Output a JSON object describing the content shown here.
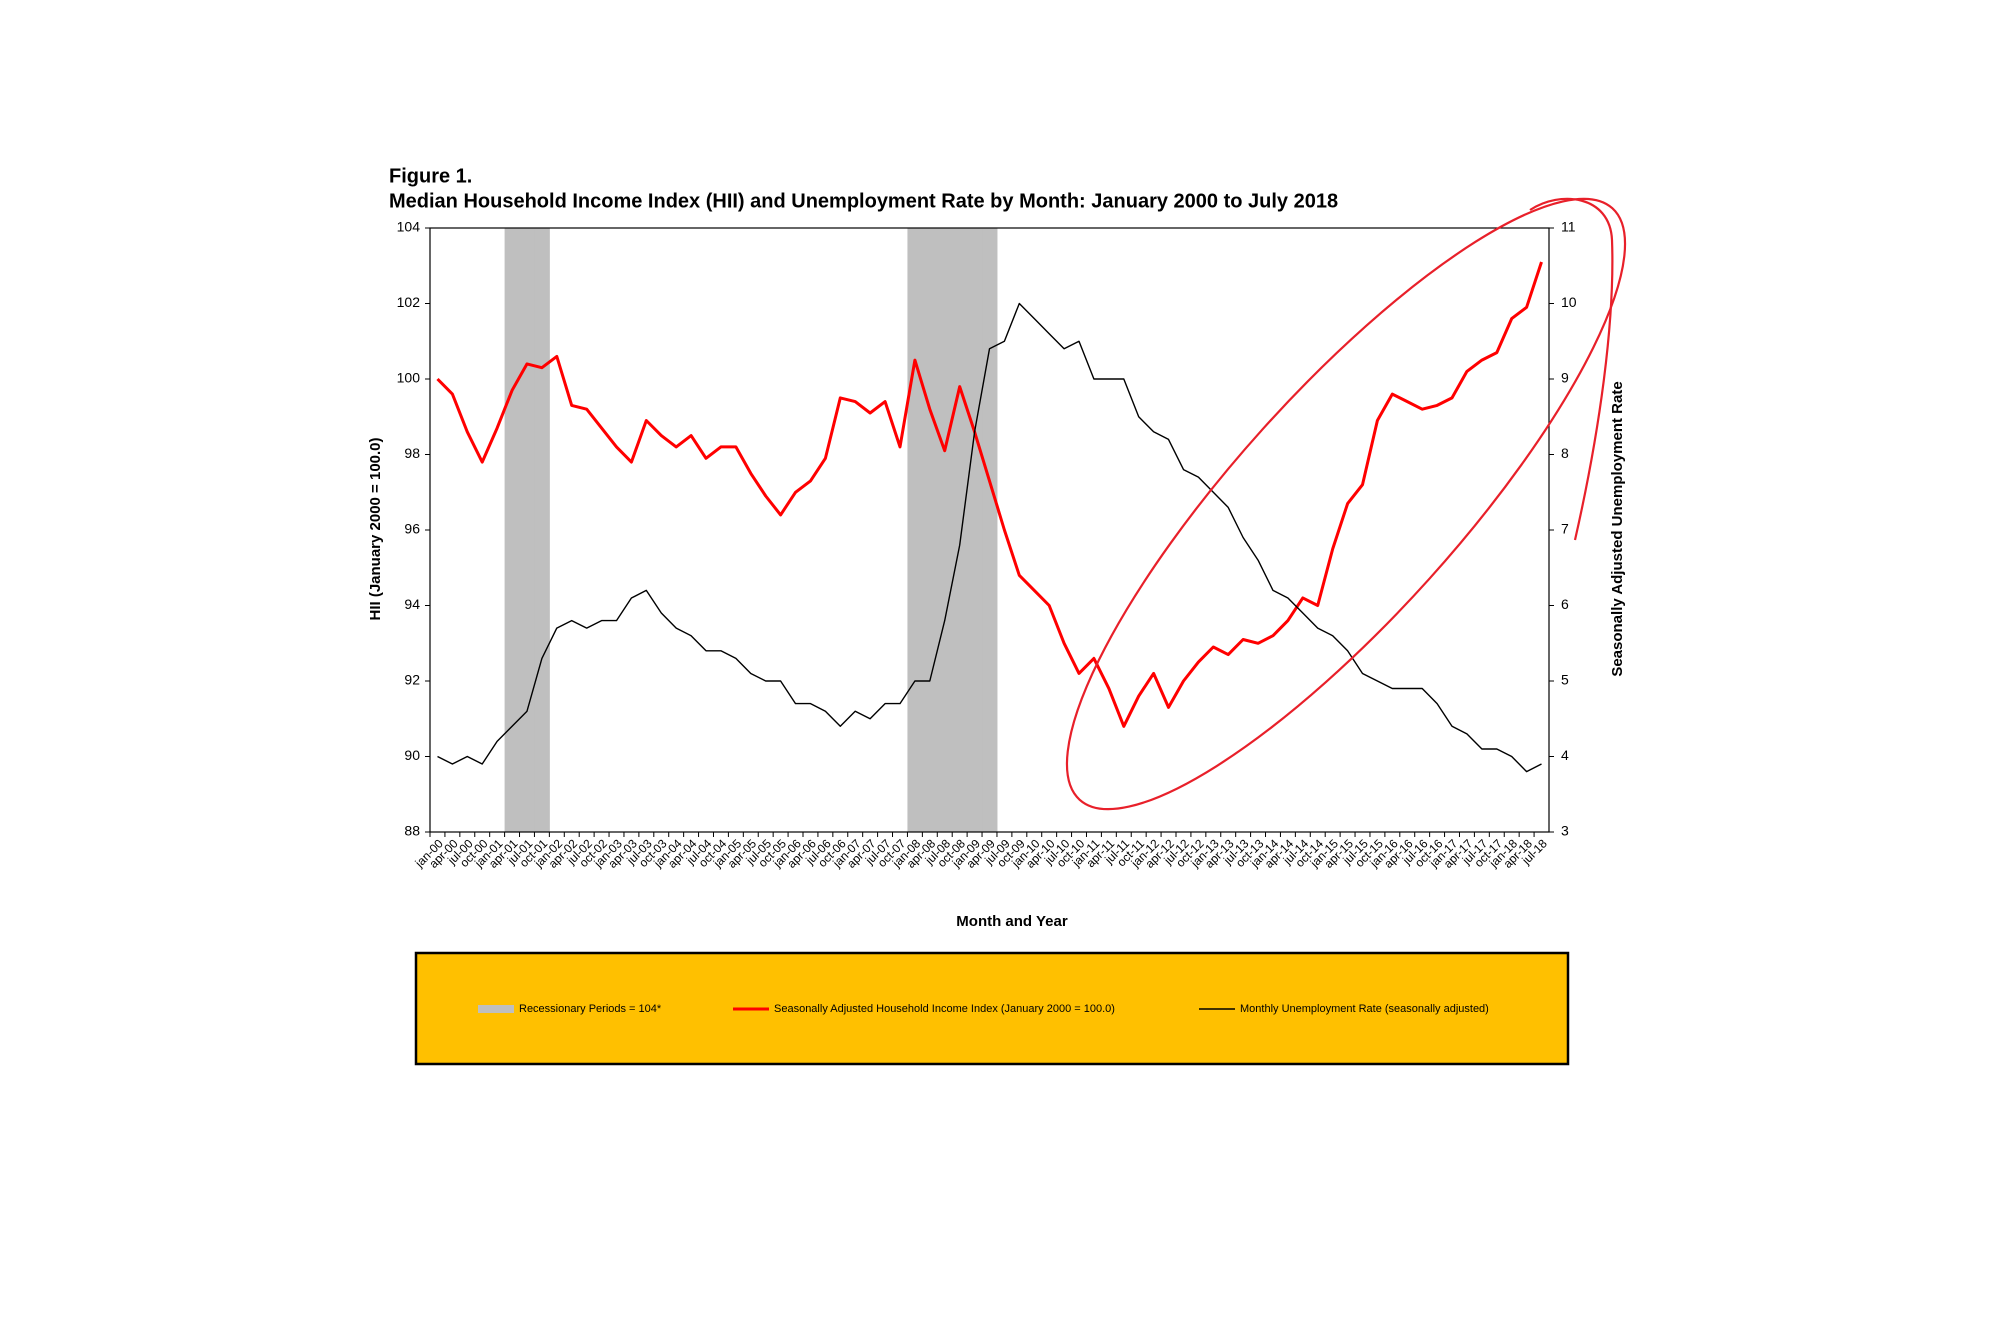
{
  "chart_data": {
    "type": "line",
    "title": "Figure 1.",
    "subtitle": "Median Household Income Index (HII) and Unemployment Rate by Month: January 2000 to July 2018",
    "x_label": "Month and Year",
    "y_label": "HII (January 2000 = 100.0)",
    "y2_label": "Seasonally Adjusted Unemployment Rate",
    "categories": [
      "jan-00",
      "apr-00",
      "jul-00",
      "oct-00",
      "jan-01",
      "apr-01",
      "jul-01",
      "oct-01",
      "jan-02",
      "apr-02",
      "jul-02",
      "oct-02",
      "jan-03",
      "apr-03",
      "jul-03",
      "oct-03",
      "jan-04",
      "apr-04",
      "jul-04",
      "oct-04",
      "jan-05",
      "apr-05",
      "jul-05",
      "oct-05",
      "jan-06",
      "apr-06",
      "jul-06",
      "oct-06",
      "jan-07",
      "apr-07",
      "jul-07",
      "oct-07",
      "jan-08",
      "apr-08",
      "jul-08",
      "oct-08",
      "jan-09",
      "apr-09",
      "jul-09",
      "oct-09",
      "jan-10",
      "apr-10",
      "jul-10",
      "oct-10",
      "jan-11",
      "apr-11",
      "jul-11",
      "oct-11",
      "jan-12",
      "apr-12",
      "jul-12",
      "oct-12",
      "jan-13",
      "apr-13",
      "jul-13",
      "oct-13",
      "jan-14",
      "apr-14",
      "jul-14",
      "oct-14",
      "jan-15",
      "apr-15",
      "jul-15",
      "oct-15",
      "jan-16",
      "apr-16",
      "jul-16",
      "oct-16",
      "jan-17",
      "apr-17",
      "jul-17",
      "oct-17",
      "jan-18",
      "apr-18",
      "jul-18"
    ],
    "series": [
      {
        "name": "Recessionary Periods = 104*",
        "type": "bar",
        "color": "#bfbfbf",
        "values": [
          null,
          null,
          null,
          null,
          null,
          104,
          104,
          104,
          null,
          null,
          null,
          null,
          null,
          null,
          null,
          null,
          null,
          null,
          null,
          null,
          null,
          null,
          null,
          null,
          null,
          null,
          null,
          null,
          null,
          null,
          null,
          null,
          104,
          104,
          104,
          104,
          104,
          104,
          null,
          null,
          null,
          null,
          null,
          null,
          null,
          null,
          null,
          null,
          null,
          null,
          null,
          null,
          null,
          null,
          null,
          null,
          null,
          null,
          null,
          null,
          null,
          null,
          null,
          null,
          null,
          null,
          null,
          null,
          null,
          null,
          null,
          null,
          null,
          null,
          null
        ]
      },
      {
        "name": "Seasonally Adjusted Household Income Index (January 2000 = 100.0)",
        "type": "line",
        "color": "#ff0000",
        "values": [
          100.0,
          99.6,
          98.6,
          97.8,
          98.7,
          99.7,
          100.4,
          100.3,
          100.6,
          99.3,
          99.2,
          98.7,
          98.2,
          97.8,
          98.9,
          98.5,
          98.2,
          98.5,
          97.9,
          98.2,
          98.2,
          97.5,
          96.9,
          96.4,
          97.0,
          97.3,
          97.9,
          99.5,
          99.4,
          99.1,
          99.4,
          98.2,
          100.5,
          99.2,
          98.1,
          99.8,
          98.6,
          97.3,
          96.0,
          94.8,
          94.4,
          94.0,
          93.0,
          92.2,
          92.6,
          91.8,
          90.8,
          91.6,
          92.2,
          91.3,
          92.0,
          92.5,
          92.9,
          92.7,
          93.1,
          93.0,
          93.2,
          93.6,
          94.2,
          94.0,
          95.5,
          96.7,
          97.2,
          98.9,
          99.6,
          99.4,
          99.2,
          99.3,
          99.5,
          100.2,
          100.5,
          100.7,
          101.6,
          101.9,
          103.1
        ]
      },
      {
        "name": "Monthly Unemployment Rate (seasonally adjusted)",
        "type": "line",
        "axis": "y2",
        "color": "#000000",
        "values": [
          4.0,
          3.9,
          4.0,
          3.9,
          4.2,
          4.4,
          4.6,
          5.3,
          5.7,
          5.8,
          5.7,
          5.8,
          5.8,
          6.1,
          6.2,
          5.9,
          5.7,
          5.6,
          5.4,
          5.4,
          5.3,
          5.1,
          5.0,
          5.0,
          4.7,
          4.7,
          4.6,
          4.4,
          4.6,
          4.5,
          4.7,
          4.7,
          5.0,
          5.0,
          5.8,
          6.8,
          8.3,
          9.4,
          9.5,
          10.0,
          9.8,
          9.6,
          9.4,
          9.5,
          9.0,
          9.0,
          9.0,
          8.5,
          8.3,
          8.2,
          7.8,
          7.7,
          7.5,
          7.3,
          6.9,
          6.6,
          6.2,
          6.1,
          5.9,
          5.7,
          5.6,
          5.4,
          5.1,
          5.0,
          4.9,
          4.9,
          4.9,
          4.7,
          4.4,
          4.3,
          4.1,
          4.1,
          4.0,
          3.8,
          3.9
        ]
      }
    ],
    "ylim": [
      88,
      104
    ],
    "yticks": [
      88,
      90,
      92,
      94,
      96,
      98,
      100,
      102,
      104
    ],
    "y2lim": [
      3,
      11
    ],
    "y2ticks": [
      3,
      4,
      5,
      6,
      7,
      8,
      9,
      10,
      11
    ],
    "grid": false,
    "legend_position": "bottom"
  }
}
